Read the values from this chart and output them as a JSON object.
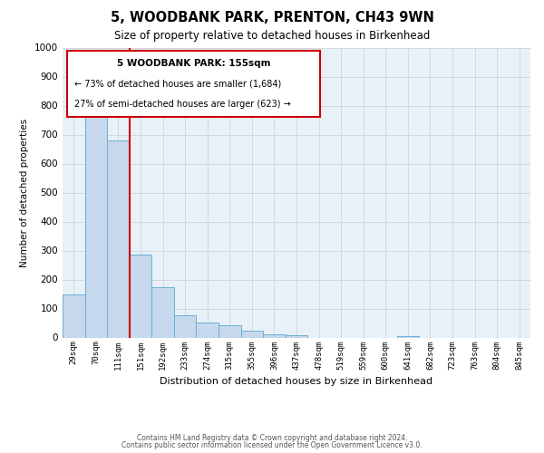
{
  "title": "5, WOODBANK PARK, PRENTON, CH43 9WN",
  "subtitle": "Size of property relative to detached houses in Birkenhead",
  "xlabel": "Distribution of detached houses by size in Birkenhead",
  "ylabel": "Number of detached properties",
  "footer_lines": [
    "Contains HM Land Registry data © Crown copyright and database right 2024.",
    "Contains public sector information licensed under the Open Government Licence v3.0."
  ],
  "categories": [
    "29sqm",
    "70sqm",
    "111sqm",
    "151sqm",
    "192sqm",
    "233sqm",
    "274sqm",
    "315sqm",
    "355sqm",
    "396sqm",
    "437sqm",
    "478sqm",
    "519sqm",
    "559sqm",
    "600sqm",
    "641sqm",
    "682sqm",
    "723sqm",
    "763sqm",
    "804sqm",
    "845sqm"
  ],
  "values": [
    150,
    822,
    680,
    287,
    172,
    78,
    52,
    42,
    22,
    10,
    8,
    0,
    0,
    0,
    0,
    5,
    0,
    0,
    0,
    0,
    0
  ],
  "bar_color": "#c6d9ec",
  "bar_edge_color": "#6aaed6",
  "vline_color": "#cc0000",
  "annotation_box_color": "#cc0000",
  "annotation_title": "5 WOODBANK PARK: 155sqm",
  "annotation_line1": "← 73% of detached houses are smaller (1,684)",
  "annotation_line2": "27% of semi-detached houses are larger (623) →",
  "ylim": [
    0,
    1000
  ],
  "yticks": [
    0,
    100,
    200,
    300,
    400,
    500,
    600,
    700,
    800,
    900,
    1000
  ],
  "background_color": "#ffffff",
  "grid_color": "#d0d8e0",
  "plot_bg_color": "#e8f0f8"
}
